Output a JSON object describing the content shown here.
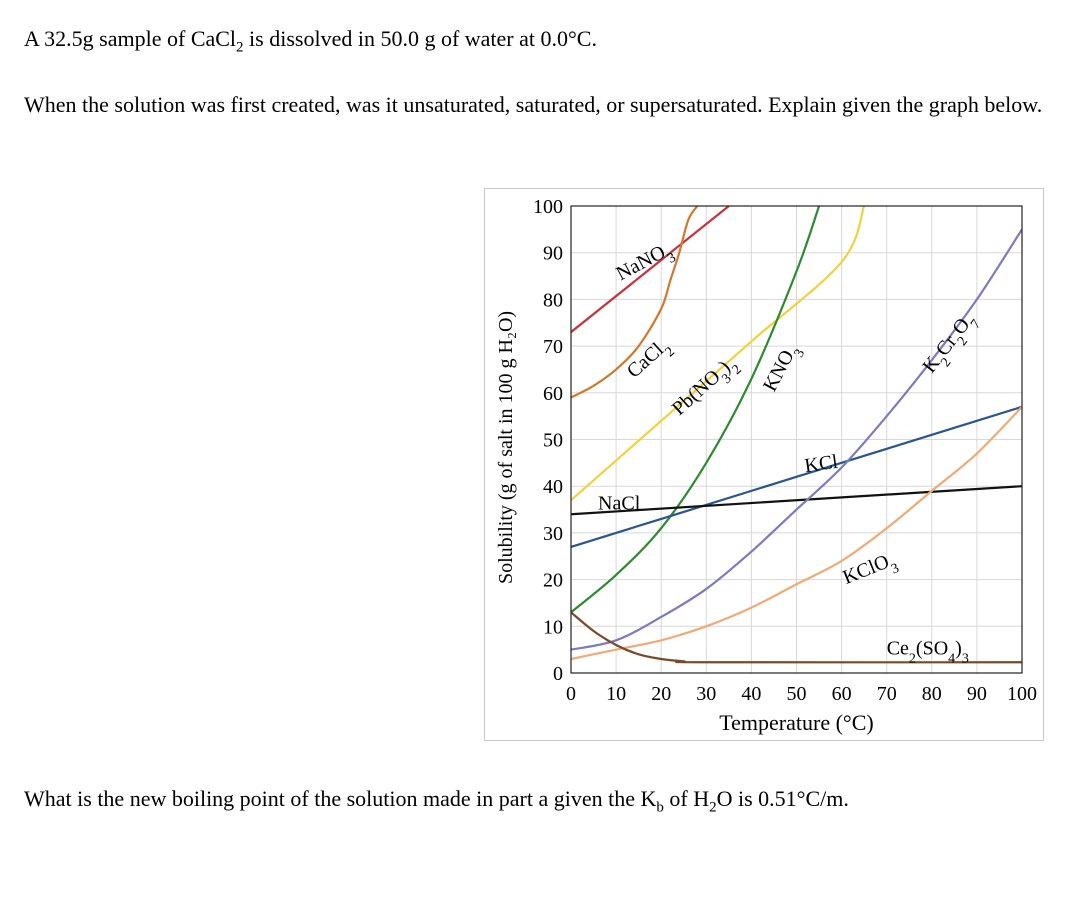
{
  "question": {
    "line1": [
      "A 32.5g sample of CaCl",
      "2",
      " is dissolved in 50.0 g of water at 0.0°C."
    ],
    "line2": "When the solution was first created, was it unsaturated, saturated, or supersaturated.  Explain given the graph below.",
    "line3": [
      "What is the new boiling point of the solution made in part a given the K",
      "b",
      " of H",
      "2",
      "O is 0.51°C/m."
    ]
  },
  "chart_data": {
    "type": "line",
    "xlabel": "Temperature (°C)",
    "ylabel": "Solubility (g of salt in 100 g H₂O)",
    "xlim": [
      0,
      100
    ],
    "ylim": [
      0,
      100
    ],
    "xticks": [
      0,
      10,
      20,
      30,
      40,
      50,
      60,
      70,
      80,
      90,
      100
    ],
    "yticks": [
      0,
      10,
      20,
      30,
      40,
      50,
      60,
      70,
      80,
      90,
      100
    ],
    "grid": true,
    "series": [
      {
        "name": "NaNO3",
        "label": [
          "NaNO",
          "3"
        ],
        "color": "#c8323a",
        "x": [
          0,
          35
        ],
        "y": [
          73,
          100
        ]
      },
      {
        "name": "CaCl2",
        "label": [
          "CaCl",
          "2"
        ],
        "color": "#d2782d",
        "x": [
          0,
          5,
          10,
          15,
          20,
          22,
          24,
          26,
          28
        ],
        "y": [
          59,
          61.5,
          65,
          70,
          78,
          84,
          90,
          97,
          100
        ]
      },
      {
        "name": "Pb(NO3)2",
        "label": [
          "Pb(NO",
          "3",
          ")",
          "2"
        ],
        "color": "#f2d23c",
        "x": [
          0,
          20,
          40,
          60,
          65
        ],
        "y": [
          37,
          54,
          71,
          88,
          100
        ]
      },
      {
        "name": "KNO3",
        "label": [
          "KNO",
          "3"
        ],
        "color": "#2f8a2f",
        "x": [
          0,
          10,
          20,
          30,
          40,
          50,
          55
        ],
        "y": [
          13,
          21,
          31,
          45,
          63,
          86,
          100
        ]
      },
      {
        "name": "KCl",
        "label": [
          "KCl"
        ],
        "color": "#2a5590",
        "x": [
          0,
          20,
          40,
          60,
          80,
          100
        ],
        "y": [
          27,
          33,
          39,
          45,
          51,
          57
        ]
      },
      {
        "name": "NaCl",
        "label": [
          "NaCl"
        ],
        "color": "#111111",
        "x": [
          0,
          100
        ],
        "y": [
          34,
          40
        ]
      },
      {
        "name": "K2Cr2O7",
        "label": [
          "K",
          "2",
          "Cr",
          "2",
          "O",
          "7"
        ],
        "color": "#7b7bc0",
        "x": [
          0,
          10,
          20,
          30,
          40,
          50,
          60,
          70,
          80,
          90,
          100
        ],
        "y": [
          5,
          7,
          12,
          18,
          26,
          35,
          44,
          55,
          67,
          80,
          95
        ]
      },
      {
        "name": "KClO3",
        "label": [
          "KClO",
          "3"
        ],
        "color": "#f0aa78",
        "x": [
          0,
          10,
          20,
          30,
          40,
          50,
          60,
          70,
          80,
          90,
          100
        ],
        "y": [
          3,
          5,
          7,
          10,
          14,
          19,
          24,
          31,
          39,
          47,
          57
        ]
      },
      {
        "name": "Ce2(SO4)3",
        "label": [
          "Ce",
          "2",
          "(SO",
          "4",
          ")",
          "3"
        ],
        "color": "#7a4a2a",
        "x": [
          0,
          5,
          10,
          15,
          20,
          25,
          30,
          100
        ],
        "y": [
          13,
          9,
          6,
          4,
          3,
          2.5,
          2.3,
          2.3
        ]
      }
    ]
  }
}
